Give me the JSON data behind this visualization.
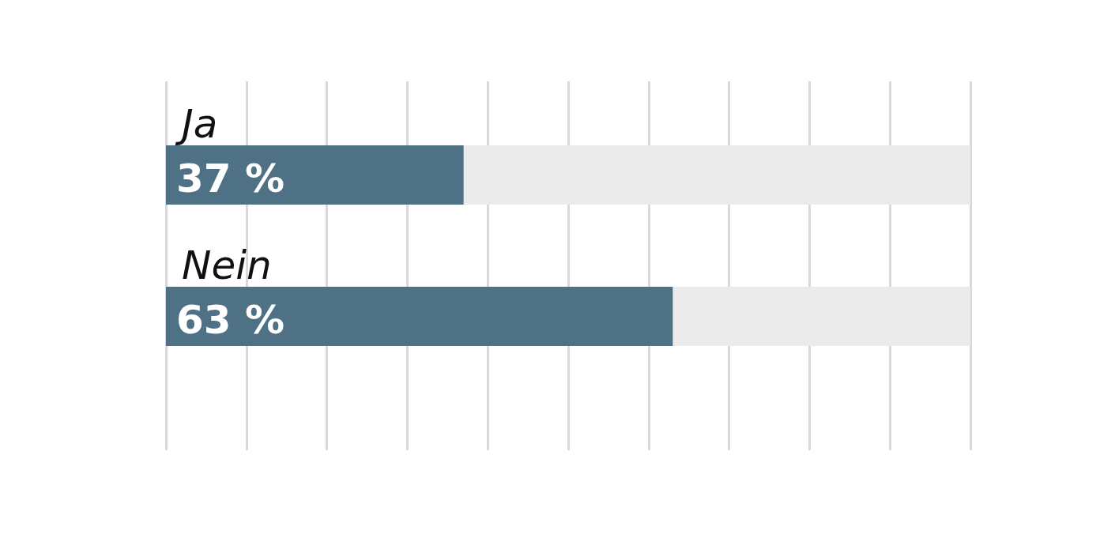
{
  "chart_data": {
    "type": "bar",
    "orientation": "horizontal",
    "categories": [
      "Ja",
      "Nein"
    ],
    "values": [
      37,
      63
    ],
    "value_labels": [
      "37 %",
      "63 %"
    ],
    "color": "#4f7186",
    "xlim": [
      0,
      100
    ],
    "xticks": [
      {
        "value": 0,
        "label": null
      },
      {
        "value": 10,
        "label": null
      },
      {
        "value": 20,
        "label": null
      },
      {
        "value": 30,
        "label": null
      },
      {
        "value": 40,
        "label": null
      },
      {
        "value": 50,
        "label": null
      },
      {
        "value": 60,
        "label": null
      },
      {
        "value": 70,
        "label": null
      },
      {
        "value": 80,
        "label": null
      },
      {
        "value": 90,
        "label": null
      },
      {
        "value": 100,
        "label": null
      }
    ],
    "grid": "x"
  }
}
